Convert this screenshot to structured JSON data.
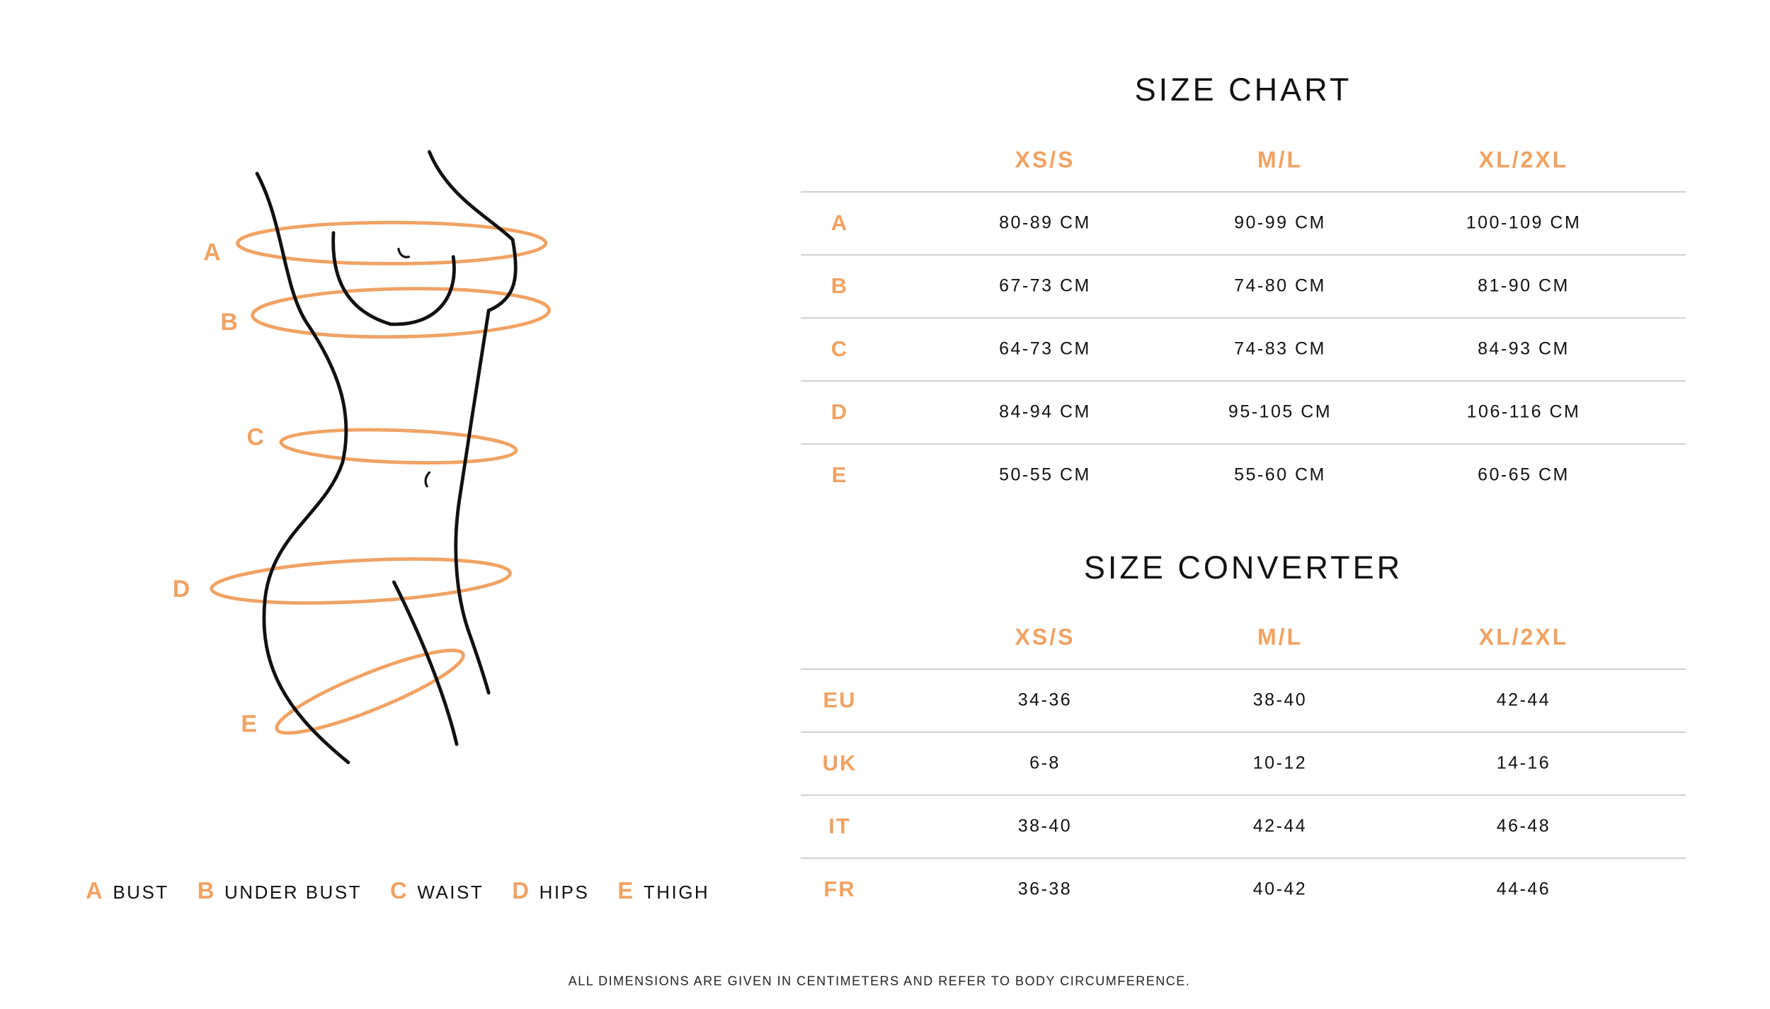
{
  "accent_color": "#f0a263",
  "figure": {
    "labels": [
      "A",
      "B",
      "C",
      "D",
      "E"
    ]
  },
  "size_chart": {
    "title": "SIZE CHART",
    "columns": [
      "XS/S",
      "M/L",
      "XL/2XL"
    ],
    "rows": [
      {
        "label": "A",
        "values": [
          "80-89 CM",
          "90-99 CM",
          "100-109 CM"
        ]
      },
      {
        "label": "B",
        "values": [
          "67-73 CM",
          "74-80 CM",
          "81-90 CM"
        ]
      },
      {
        "label": "C",
        "values": [
          "64-73 CM",
          "74-83 CM",
          "84-93 CM"
        ]
      },
      {
        "label": "D",
        "values": [
          "84-94 CM",
          "95-105 CM",
          "106-116 CM"
        ]
      },
      {
        "label": "E",
        "values": [
          "50-55 CM",
          "55-60 CM",
          "60-65 CM"
        ]
      }
    ]
  },
  "size_converter": {
    "title": "SIZE CONVERTER",
    "columns": [
      "XS/S",
      "M/L",
      "XL/2XL"
    ],
    "rows": [
      {
        "label": "EU",
        "values": [
          "34-36",
          "38-40",
          "42-44"
        ]
      },
      {
        "label": "UK",
        "values": [
          "6-8",
          "10-12",
          "14-16"
        ]
      },
      {
        "label": "IT",
        "values": [
          "38-40",
          "42-44",
          "46-48"
        ]
      },
      {
        "label": "FR",
        "values": [
          "36-38",
          "40-42",
          "44-46"
        ]
      }
    ]
  },
  "legend": [
    {
      "key": "A",
      "label": "BUST"
    },
    {
      "key": "B",
      "label": "UNDER BUST"
    },
    {
      "key": "C",
      "label": "WAIST"
    },
    {
      "key": "D",
      "label": "HIPS"
    },
    {
      "key": "E",
      "label": "THIGH"
    }
  ],
  "footnote": "ALL DIMENSIONS ARE GIVEN IN CENTIMETERS AND REFER TO BODY CIRCUMFERENCE."
}
